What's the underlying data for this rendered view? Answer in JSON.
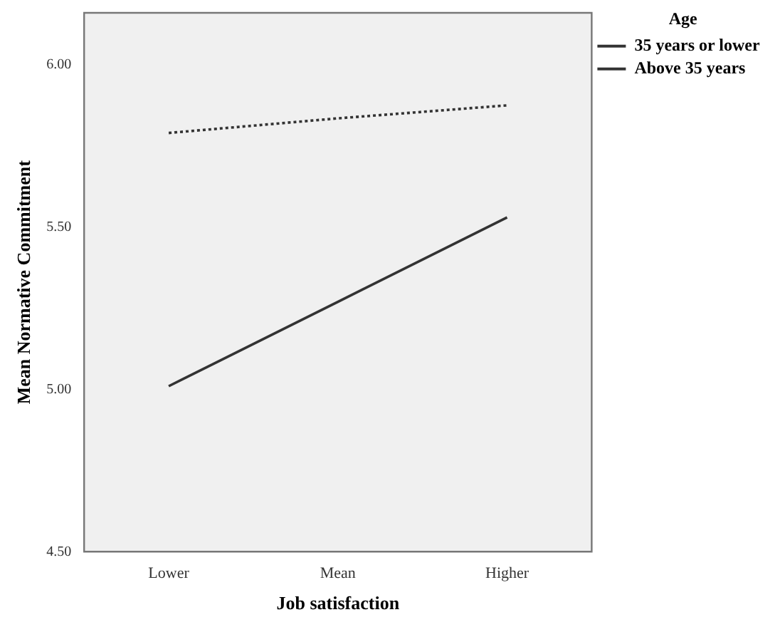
{
  "chart_data": {
    "type": "line",
    "xlabel": "Job satisfaction",
    "ylabel": "Mean Normative Commitment",
    "legend_title": "Age",
    "legend": "top right",
    "grid": false,
    "marker": "none",
    "categories": [
      "Lower",
      "Mean",
      "Higher"
    ],
    "series": [
      {
        "name": "35 years or lower",
        "color": "#333333",
        "line_style": "solid",
        "values": [
          5.01,
          5.27,
          5.53
        ]
      },
      {
        "name": "Above 35 years",
        "color": "#333333",
        "line_style": "dotted",
        "values": [
          5.79,
          5.835,
          5.875
        ]
      }
    ],
    "ylim": [
      4.5,
      6.16
    ],
    "yticks": [
      {
        "value": 4.5,
        "label": "4.50"
      },
      {
        "value": 5,
        "label": "5.00"
      },
      {
        "value": 5.5,
        "label": "5.50"
      },
      {
        "value": 6,
        "label": "6.00"
      }
    ]
  }
}
